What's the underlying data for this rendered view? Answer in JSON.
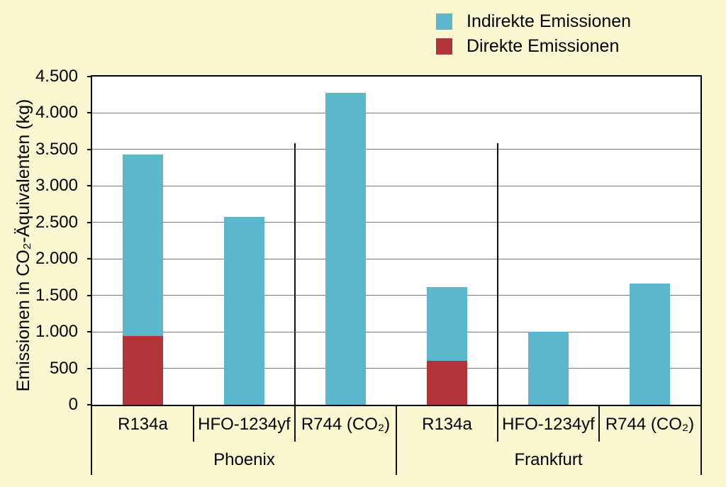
{
  "colors": {
    "background": "#FBF7D0",
    "plot_background": "#FFFFFF",
    "grid": "#7A7A7A",
    "axis": "#000000",
    "indirect_blue": "#5AB7CD",
    "direct_red": "#B23338"
  },
  "chart_data": {
    "type": "bar",
    "stacked": true,
    "title": "",
    "xlabel": "",
    "ylabel": "Emissionen in CO₂-Äquivalenten (kg)",
    "ylim": [
      0,
      4500
    ],
    "ytick_step": 500,
    "yticks": [
      "0",
      "500",
      "1.000",
      "1.500",
      "2.000",
      "2.500",
      "3.000",
      "3.500",
      "4.000",
      "4.500"
    ],
    "grid": true,
    "legend_position": "top-right",
    "legend": [
      "Indirekte Emissionen",
      "Direkte Emissionen"
    ],
    "groups": [
      "Phoenix",
      "Frankfurt"
    ],
    "categories": [
      "R134a",
      "HFO-1234yf",
      "R744 (CO₂)"
    ],
    "series": [
      {
        "name": "Direkte Emissionen",
        "color": "#B23338",
        "values": [
          [
            940,
            0,
            0
          ],
          [
            600,
            0,
            0
          ]
        ]
      },
      {
        "name": "Indirekte Emissionen",
        "color": "#5AB7CD",
        "values": [
          [
            2490,
            2580,
            4280
          ],
          [
            1010,
            1000,
            1660
          ]
        ]
      }
    ],
    "totals": [
      [
        3430,
        2580,
        4280
      ],
      [
        1610,
        1000,
        1660
      ]
    ]
  }
}
